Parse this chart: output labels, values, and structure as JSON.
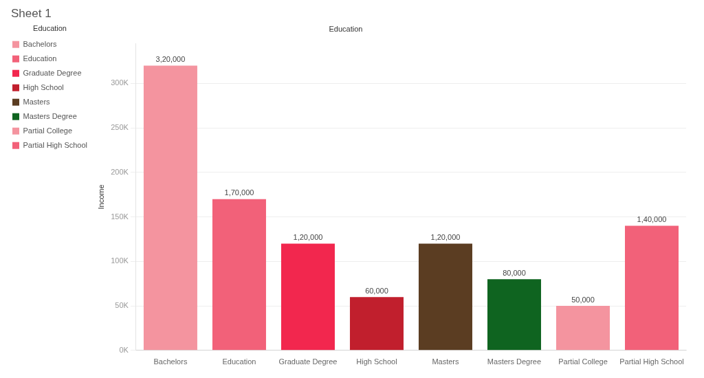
{
  "chart_data": {
    "type": "bar",
    "title": "Sheet 1",
    "subtitle": "Education",
    "ylabel": "Income",
    "stacked": true,
    "categories": [
      "Bachelors",
      "Education",
      "Graduate Degree",
      "High School",
      "Masters",
      "Masters Degree",
      "Partial College",
      "Partial High School"
    ],
    "series": [
      {
        "name": "Bachelors",
        "color": "#f4949f",
        "values": [
          320000,
          null,
          null,
          null,
          null,
          null,
          null,
          null
        ],
        "value_labels": [
          "3,20,000",
          null,
          null,
          null,
          null,
          null,
          null,
          null
        ]
      },
      {
        "name": "Education",
        "color": "#f26179",
        "values": [
          null,
          170000,
          null,
          null,
          null,
          null,
          null,
          null
        ],
        "value_labels": [
          null,
          "1,70,000",
          null,
          null,
          null,
          null,
          null,
          null
        ]
      },
      {
        "name": "Graduate Degree",
        "color": "#f2274e",
        "values": [
          null,
          null,
          120000,
          null,
          null,
          null,
          null,
          null
        ],
        "value_labels": [
          null,
          null,
          "1,20,000",
          null,
          null,
          null,
          null,
          null
        ]
      },
      {
        "name": "High School",
        "color": "#c11f2d",
        "values": [
          null,
          null,
          null,
          60000,
          null,
          null,
          null,
          null
        ],
        "value_labels": [
          null,
          null,
          null,
          "60,000",
          null,
          null,
          null,
          null
        ]
      },
      {
        "name": "Masters",
        "color": "#5b3d22",
        "values": [
          null,
          null,
          null,
          null,
          120000,
          null,
          null,
          null
        ],
        "value_labels": [
          null,
          null,
          null,
          null,
          "1,20,000",
          null,
          null,
          null
        ]
      },
      {
        "name": "Masters Degree",
        "color": "#0f6420",
        "values": [
          null,
          null,
          null,
          null,
          null,
          80000,
          null,
          null
        ],
        "value_labels": [
          null,
          null,
          null,
          null,
          null,
          "80,000",
          null,
          null
        ]
      },
      {
        "name": "Partial College",
        "color": "#f4949f",
        "values": [
          null,
          null,
          null,
          null,
          null,
          null,
          50000,
          null
        ],
        "value_labels": [
          null,
          null,
          null,
          null,
          null,
          null,
          "50,000",
          null
        ]
      },
      {
        "name": "Partial High School",
        "color": "#f26179",
        "values": [
          null,
          null,
          null,
          null,
          null,
          null,
          null,
          140000
        ],
        "value_labels": [
          null,
          null,
          null,
          null,
          null,
          null,
          null,
          "1,40,000"
        ]
      }
    ],
    "ylim": [
      0,
      345000
    ],
    "yticks": [
      {
        "value": 0,
        "label": "0K"
      },
      {
        "value": 50000,
        "label": "50K"
      },
      {
        "value": 100000,
        "label": "100K"
      },
      {
        "value": 150000,
        "label": "150K"
      },
      {
        "value": 200000,
        "label": "200K"
      },
      {
        "value": 250000,
        "label": "250K"
      },
      {
        "value": 300000,
        "label": "300K"
      }
    ],
    "grid": "y",
    "legend": "left",
    "legend_title": "Education"
  }
}
